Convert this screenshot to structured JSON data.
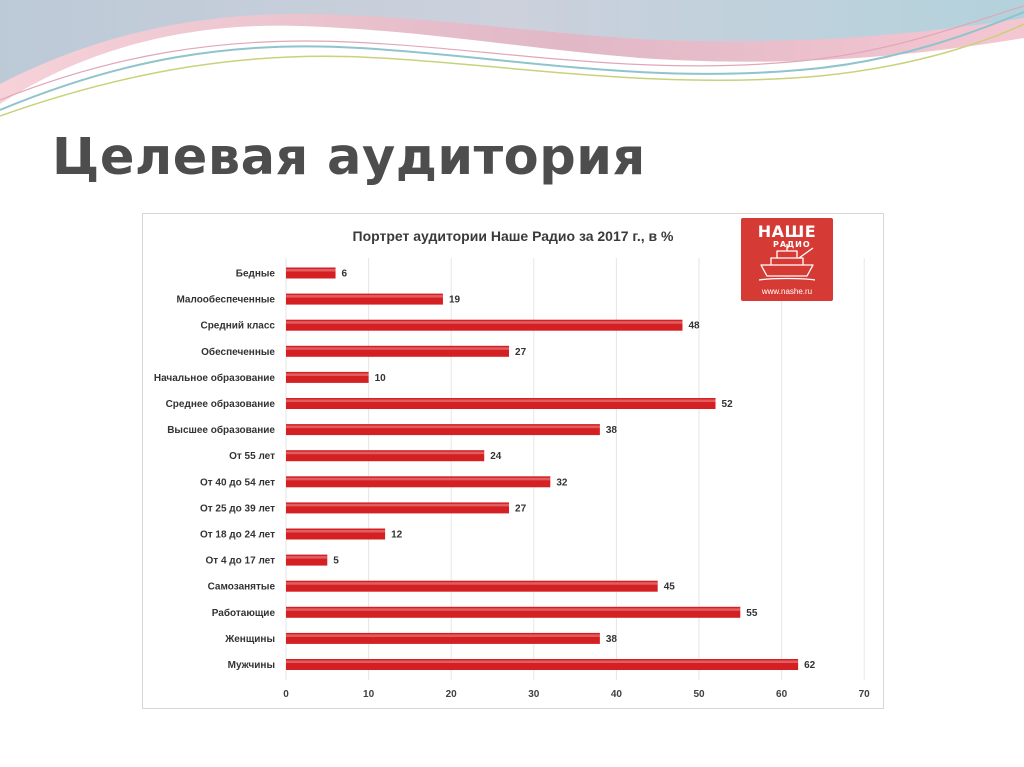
{
  "slide": {
    "title": "Целевая аудитория"
  },
  "logo": {
    "word": "НАШЕ",
    "sub": "РАДИО",
    "url": "www.nashe.ru"
  },
  "colors": {
    "bar": "#d52023",
    "title": "#4d4d4d",
    "logo_bg": "#d53a34",
    "grid": "#e6e6e6"
  },
  "chart_data": {
    "type": "bar",
    "orientation": "horizontal",
    "title": "Портрет аудитории Наше Радио за 2017 г., в %",
    "categories": [
      "Бедные",
      "Малообеспеченные",
      "Средний класс",
      "Обеспеченные",
      "Начальное образование",
      "Среднее образование",
      "Высшее образование",
      "От 55 лет",
      "От 40 до 54 лет",
      "От 25 до 39 лет",
      "От 18 до 24 лет",
      "От 4 до 17 лет",
      "Самозанятые",
      "Работающие",
      "Женщины",
      "Мужчины"
    ],
    "values": [
      6,
      19,
      48,
      27,
      10,
      52,
      38,
      24,
      32,
      27,
      12,
      5,
      45,
      55,
      38,
      62
    ],
    "xlim": [
      0,
      70
    ],
    "xticks": [
      0,
      10,
      20,
      30,
      40,
      50,
      60,
      70
    ],
    "grid": true,
    "data_labels": true,
    "legend": "none"
  }
}
